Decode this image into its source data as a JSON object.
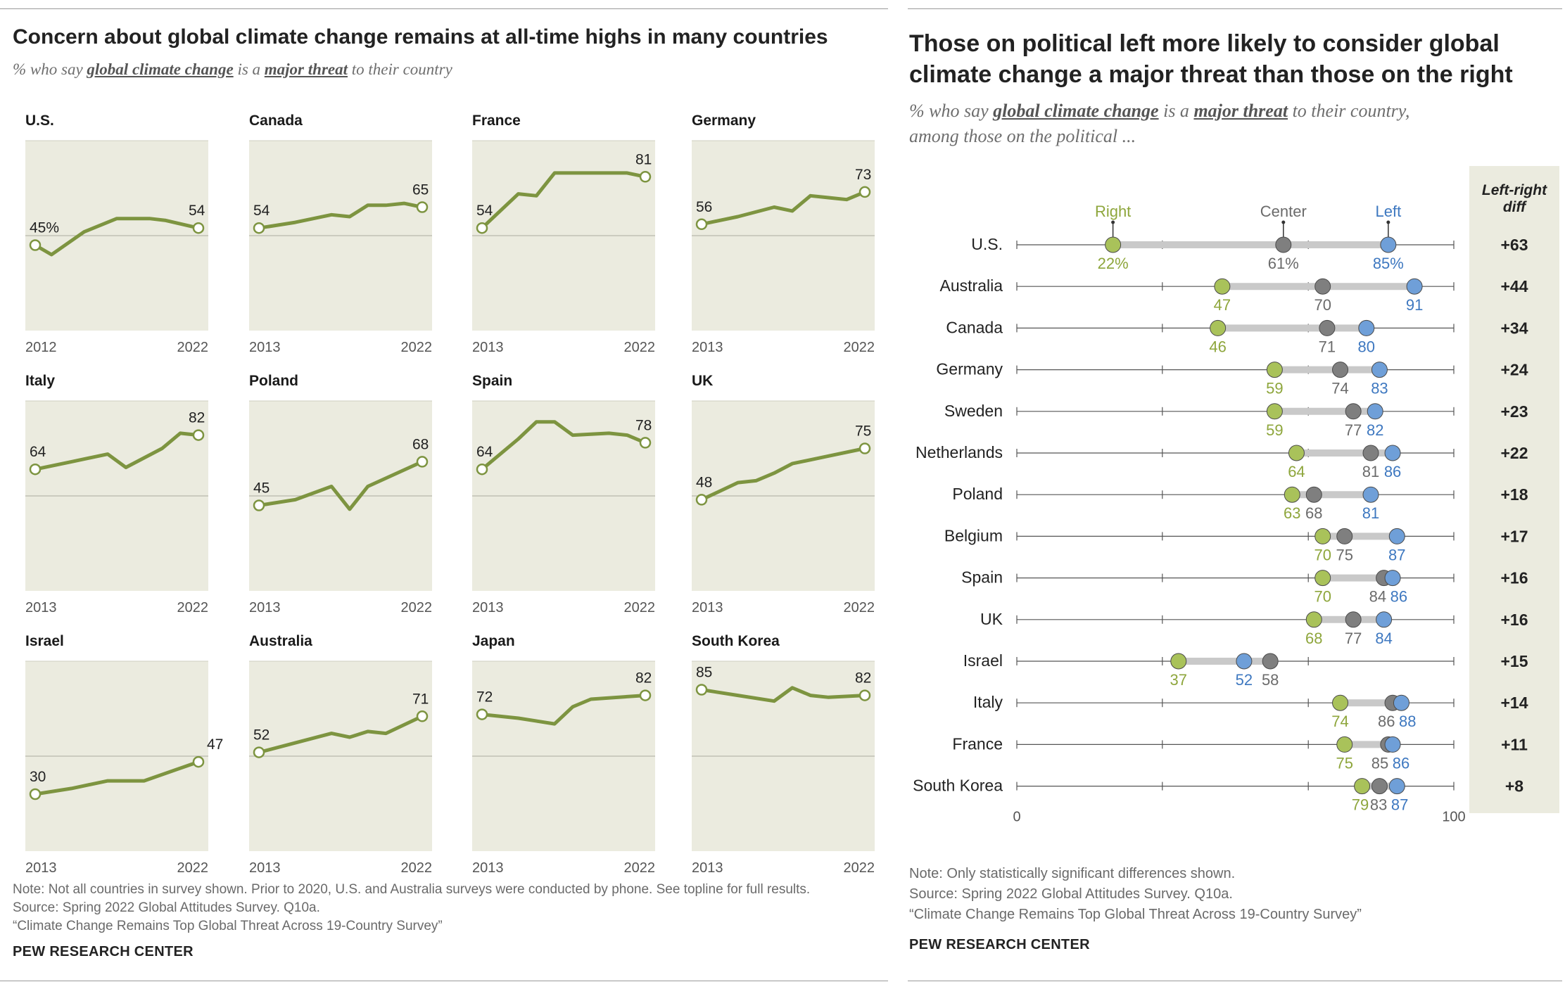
{
  "left": {
    "title": "Concern about global climate change remains at all-time highs in many countries",
    "subtitle": {
      "pre": "% who say ",
      "term1": "global climate change",
      "mid": " is a ",
      "term2": "major threat",
      "post": " to their country"
    },
    "note": "Note: Not all countries in survey shown. Prior to 2020, U.S. and Australia surveys were conducted by phone. See topline for full results.",
    "source": "Source: Spring 2022 Global Attitudes Survey. Q10a.",
    "report": "“Climate Change Remains Top Global Threat Across 19-Country Survey”",
    "brand": "PEW RESEARCH CENTER"
  },
  "right": {
    "title_line1": "Those on political left more likely to consider global",
    "title_line2": "climate change a major threat than those on the right",
    "subtitle": {
      "pre": "% who say ",
      "term1": "global climate change",
      "mid": " is a ",
      "term2": "major threat",
      "post": " to their country,",
      "line2": "among those on the political ..."
    },
    "note": "Note: Only statistically significant differences shown.",
    "source": "Source: Spring 2022 Global Attitudes Survey. Q10a.",
    "report": "“Climate Change Remains Top Global Threat Across 19-Country Survey”",
    "brand": "PEW RESEARCH CENTER"
  },
  "colors": {
    "line": "#7d9440",
    "panel_bg": "#ebebdf",
    "right": "#a9c25a",
    "center": "#7f7f7f",
    "left": "#6f9fd8",
    "right_text": "#8ea63c",
    "center_text": "#6b6b6b",
    "left_text": "#3e78c0",
    "diff_bg": "#ebebdf"
  },
  "chart_data": [
    {
      "type": "line",
      "title": "Concern about global climate change remains at all-time highs in many countries",
      "ylim": [
        0,
        100
      ],
      "reference_line": 50,
      "panels": [
        {
          "country": "U.S.",
          "x": [
            2012,
            2013,
            2015,
            2017,
            2019,
            2020,
            2022
          ],
          "values": [
            45,
            40,
            52,
            59,
            59,
            58,
            54
          ],
          "start_label": "45%",
          "end_label": "54",
          "x_start_label": "2012",
          "x_end_label": "2022"
        },
        {
          "country": "Canada",
          "x": [
            2013,
            2015,
            2017,
            2018,
            2019,
            2020,
            2021,
            2022
          ],
          "values": [
            54,
            57,
            61,
            60,
            66,
            66,
            67,
            65
          ],
          "start_label": "54",
          "end_label": "65",
          "x_start_label": "2013",
          "x_end_label": "2022"
        },
        {
          "country": "France",
          "x": [
            2013,
            2015,
            2016,
            2017,
            2018,
            2020,
            2021,
            2022
          ],
          "values": [
            54,
            72,
            71,
            83,
            83,
            83,
            83,
            81
          ],
          "start_label": "54",
          "end_label": "81",
          "x_start_label": "2013",
          "x_end_label": "2022"
        },
        {
          "country": "Germany",
          "x": [
            2013,
            2015,
            2017,
            2018,
            2019,
            2020,
            2021,
            2022
          ],
          "values": [
            56,
            60,
            65,
            63,
            71,
            70,
            69,
            73
          ],
          "start_label": "56",
          "end_label": "73",
          "x_start_label": "2013",
          "x_end_label": "2022"
        },
        {
          "country": "Italy",
          "x": [
            2013,
            2015,
            2017,
            2018,
            2020,
            2021,
            2022
          ],
          "values": [
            64,
            68,
            72,
            65,
            75,
            83,
            82
          ],
          "start_label": "64",
          "end_label": "82",
          "x_start_label": "2013",
          "x_end_label": "2022"
        },
        {
          "country": "Poland",
          "x": [
            2013,
            2015,
            2017,
            2018,
            2019,
            2022
          ],
          "values": [
            45,
            48,
            55,
            43,
            55,
            68
          ],
          "start_label": "45",
          "end_label": "68",
          "x_start_label": "2013",
          "x_end_label": "2022"
        },
        {
          "country": "Spain",
          "x": [
            2013,
            2015,
            2016,
            2017,
            2018,
            2020,
            2021,
            2022
          ],
          "values": [
            64,
            80,
            89,
            89,
            82,
            83,
            82,
            78
          ],
          "start_label": "64",
          "end_label": "78",
          "x_start_label": "2013",
          "x_end_label": "2022"
        },
        {
          "country": "UK",
          "x": [
            2013,
            2015,
            2016,
            2017,
            2018,
            2020,
            2022
          ],
          "values": [
            48,
            57,
            58,
            62,
            67,
            71,
            75
          ],
          "start_label": "48",
          "end_label": "75",
          "x_start_label": "2013",
          "x_end_label": "2022"
        },
        {
          "country": "Israel",
          "x": [
            2013,
            2015,
            2017,
            2019,
            2022
          ],
          "values": [
            30,
            33,
            37,
            37,
            47
          ],
          "start_label": "30",
          "end_label": "47",
          "x_start_label": "2013",
          "x_end_label": "2022"
        },
        {
          "country": "Australia",
          "x": [
            2013,
            2015,
            2017,
            2018,
            2019,
            2020,
            2022
          ],
          "values": [
            52,
            57,
            62,
            60,
            63,
            62,
            71
          ],
          "start_label": "52",
          "end_label": "71",
          "x_start_label": "2013",
          "x_end_label": "2022"
        },
        {
          "country": "Japan",
          "x": [
            2013,
            2015,
            2017,
            2018,
            2019,
            2022
          ],
          "values": [
            72,
            70,
            67,
            76,
            80,
            82
          ],
          "start_label": "72",
          "end_label": "82",
          "x_start_label": "2013",
          "x_end_label": "2022"
        },
        {
          "country": "South Korea",
          "x": [
            2013,
            2015,
            2017,
            2018,
            2019,
            2020,
            2022
          ],
          "values": [
            85,
            82,
            79,
            86,
            82,
            81,
            82
          ],
          "start_label": "85",
          "end_label": "82",
          "x_start_label": "2013",
          "x_end_label": "2022"
        }
      ]
    },
    {
      "type": "scatter",
      "title": "Those on political left more likely to consider global climate change a major threat than those on the right",
      "xlim": [
        0,
        100
      ],
      "tick_labels": [
        "0",
        "100"
      ],
      "series_names": [
        "Right",
        "Center",
        "Left"
      ],
      "diff_header": [
        "Left-right",
        "diff"
      ],
      "rows": [
        {
          "country": "U.S.",
          "right": 22,
          "center": 61,
          "left": 85,
          "right_label": "22%",
          "center_label": "61%",
          "left_label": "85%",
          "diff": "+63"
        },
        {
          "country": "Australia",
          "right": 47,
          "center": 70,
          "left": 91,
          "right_label": "47",
          "center_label": "70",
          "left_label": "91",
          "diff": "+44"
        },
        {
          "country": "Canada",
          "right": 46,
          "center": 71,
          "left": 80,
          "right_label": "46",
          "center_label": "71",
          "left_label": "80",
          "diff": "+34"
        },
        {
          "country": "Germany",
          "right": 59,
          "center": 74,
          "left": 83,
          "right_label": "59",
          "center_label": "74",
          "left_label": "83",
          "diff": "+24"
        },
        {
          "country": "Sweden",
          "right": 59,
          "center": 77,
          "left": 82,
          "right_label": "59",
          "center_label": "77",
          "left_label": "82",
          "diff": "+23"
        },
        {
          "country": "Netherlands",
          "right": 64,
          "center": 81,
          "left": 86,
          "right_label": "64",
          "center_label": "81",
          "left_label": "86",
          "diff": "+22"
        },
        {
          "country": "Poland",
          "right": 63,
          "center": 68,
          "left": 81,
          "right_label": "63",
          "center_label": "68",
          "left_label": "81",
          "diff": "+18"
        },
        {
          "country": "Belgium",
          "right": 70,
          "center": 75,
          "left": 87,
          "right_label": "70",
          "center_label": "75",
          "left_label": "87",
          "diff": "+17"
        },
        {
          "country": "Spain",
          "right": 70,
          "center": 84,
          "left": 86,
          "right_label": "70",
          "center_label": "84",
          "left_label": "86",
          "diff": "+16"
        },
        {
          "country": "UK",
          "right": 68,
          "center": 77,
          "left": 84,
          "right_label": "68",
          "center_label": "77",
          "left_label": "84",
          "diff": "+16"
        },
        {
          "country": "Israel",
          "right": 37,
          "center": 58,
          "left": 52,
          "right_label": "37",
          "center_label": "58",
          "left_label": "52",
          "diff": "+15"
        },
        {
          "country": "Italy",
          "right": 74,
          "center": 86,
          "left": 88,
          "right_label": "74",
          "center_label": "86",
          "left_label": "88",
          "diff": "+14"
        },
        {
          "country": "France",
          "right": 75,
          "center": 85,
          "left": 86,
          "right_label": "75",
          "center_label": "85",
          "left_label": "86",
          "diff": "+11"
        },
        {
          "country": "South Korea",
          "right": 79,
          "center": 83,
          "left": 87,
          "right_label": "79",
          "center_label": "83",
          "left_label": "87",
          "diff": "+8"
        }
      ]
    }
  ]
}
